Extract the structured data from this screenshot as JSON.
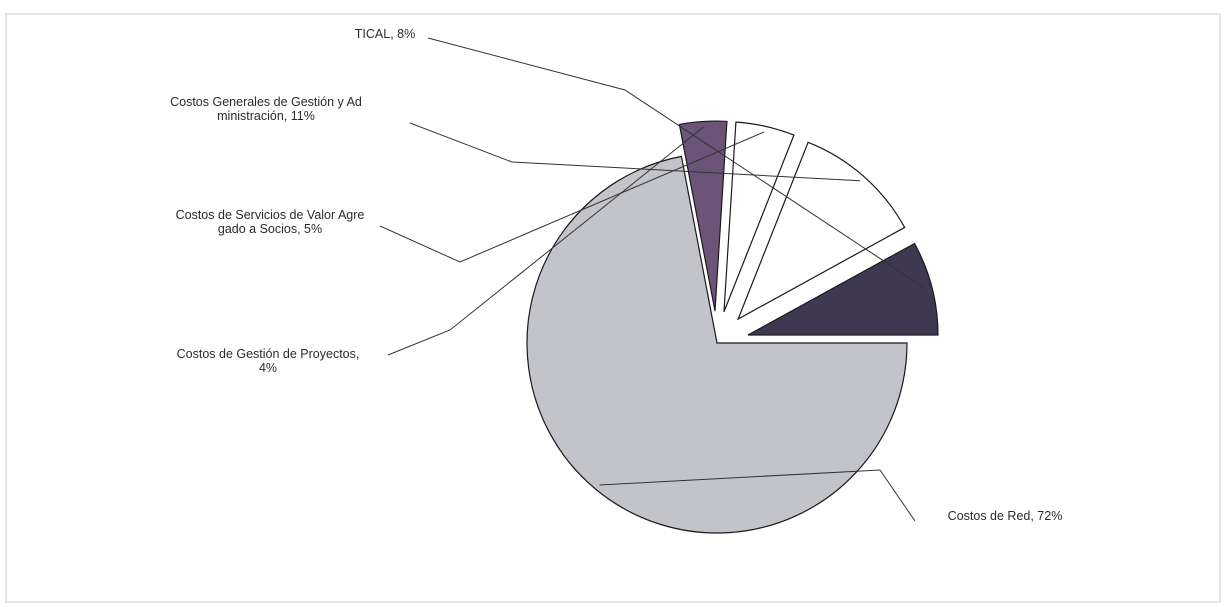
{
  "chart_data": {
    "type": "pie",
    "title": "",
    "slices": [
      {
        "label": "Costos de Red",
        "value": 72,
        "value_text": "72%",
        "color": "#c3c4c9",
        "exploded": false,
        "label_lines": [
          "Costos de Red, 72%"
        ]
      },
      {
        "label": "Costos de Gestión de Proyectos",
        "value": 4,
        "value_text": "4%",
        "color": "#6c5479",
        "exploded": true,
        "label_lines": [
          "Costos de Gestión de Proyectos,",
          "4%"
        ]
      },
      {
        "label": "Costos de Servicios de Valor Agregado a Socios",
        "value": 5,
        "value_text": "5%",
        "color": "#ffffff",
        "exploded": true,
        "label_lines": [
          "Costos de Servicios de Valor Agre",
          "gado a Socios, 5%"
        ]
      },
      {
        "label": "Costos Generales de Gestión y Administración",
        "value": 11,
        "value_text": "11%",
        "color": "#ffffff",
        "exploded": true,
        "label_lines": [
          "Costos Generales de Gestión y Ad",
          "ministración, 11%"
        ]
      },
      {
        "label": "TICAL",
        "value": 8,
        "value_text": "8%",
        "color": "#3e3850",
        "exploded": true,
        "label_lines": [
          "TICAL, 8%"
        ]
      }
    ],
    "legend": "none"
  }
}
